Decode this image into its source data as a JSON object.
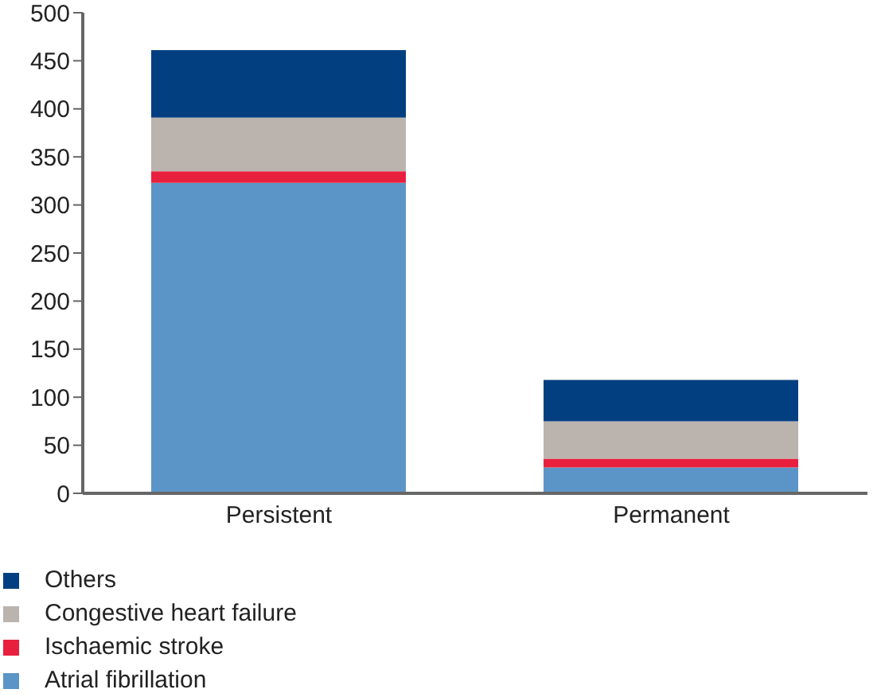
{
  "chart_data": {
    "type": "bar",
    "stacked": true,
    "categories": [
      "Persistent",
      "Permanent"
    ],
    "series": [
      {
        "name": "Atrial fibrillation",
        "color": "#5b95c7",
        "values": [
          323,
          27
        ]
      },
      {
        "name": "Ischaemic stroke",
        "color": "#e8203e",
        "values": [
          12,
          9
        ]
      },
      {
        "name": "Congestive heart failure",
        "color": "#bab3ae",
        "values": [
          56,
          39
        ]
      },
      {
        "name": "Others",
        "color": "#023f80",
        "values": [
          70,
          43
        ]
      }
    ],
    "ylim": [
      0,
      500
    ],
    "yticks": [
      0,
      50,
      100,
      150,
      200,
      250,
      300,
      350,
      400,
      450,
      500
    ],
    "grid": false,
    "legend": "bottom left"
  }
}
